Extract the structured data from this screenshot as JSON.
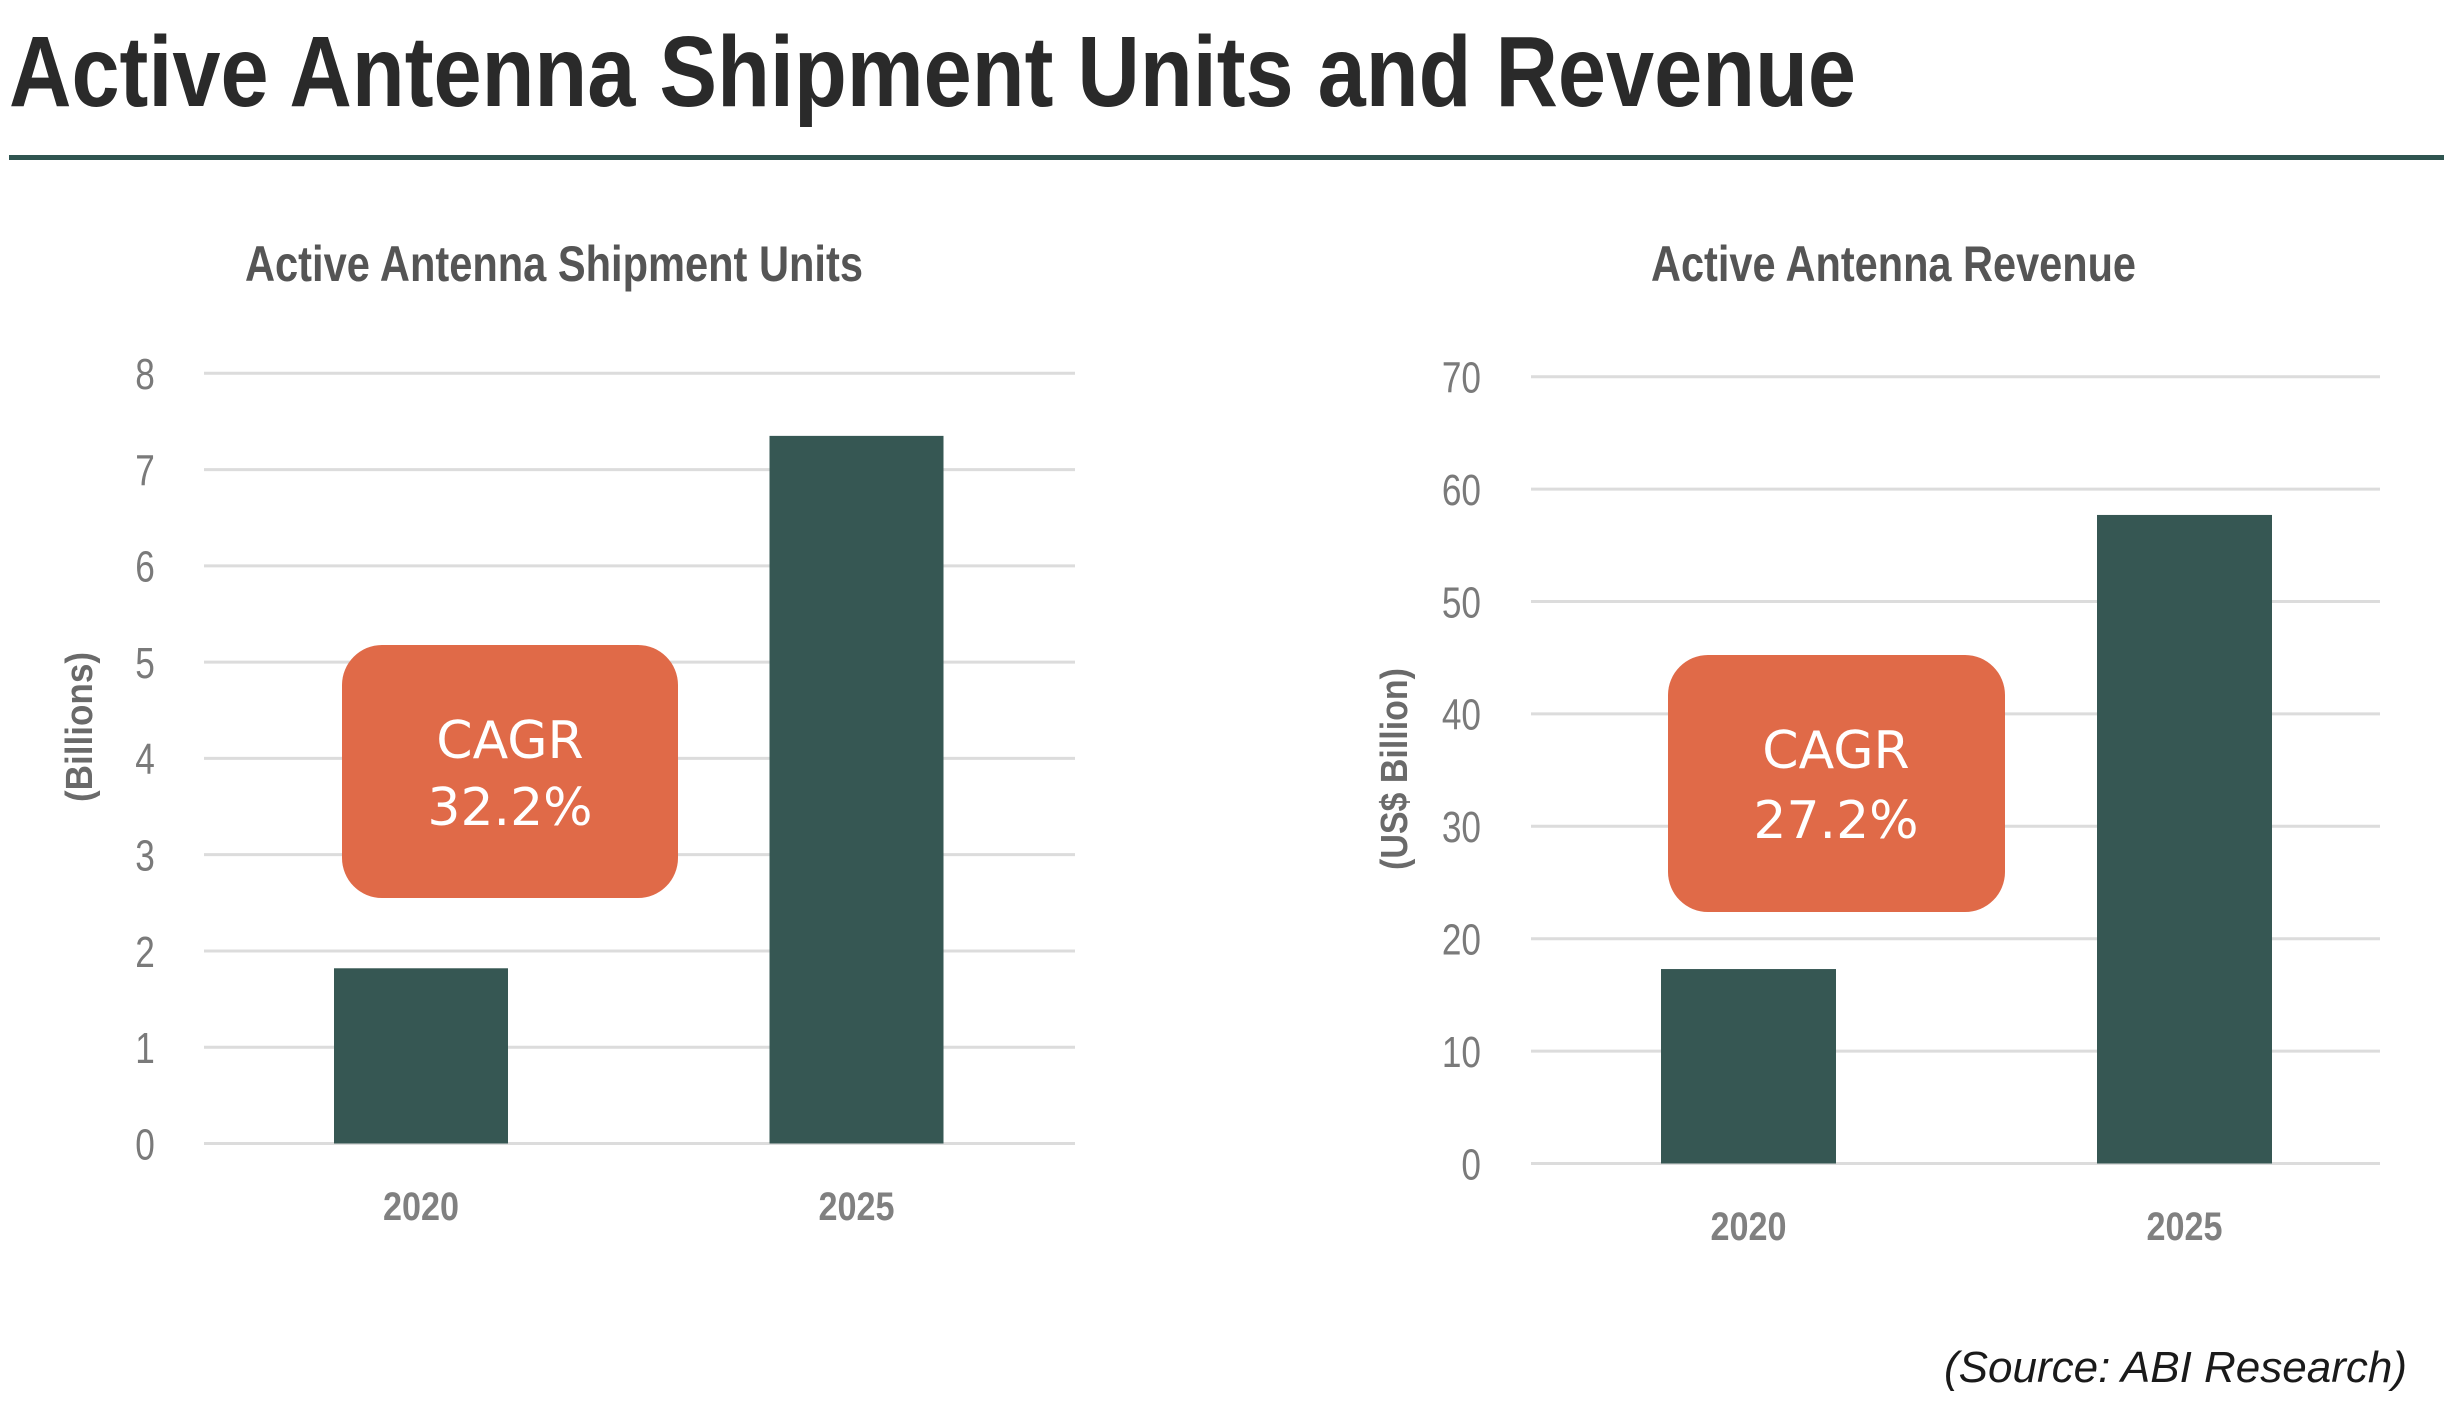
{
  "page": {
    "title": "Active Antenna Shipment Units and Revenue",
    "source": "(Source: ABI Research)",
    "colors": {
      "bar": "#365753",
      "cagr_box": "#E06A48",
      "title_rule": "#2f5550",
      "gridline": "#dcdcdc"
    }
  },
  "chart_data": [
    {
      "type": "bar",
      "title": "Active Antenna Shipment Units",
      "xlabel": "",
      "ylabel": "(Billions)",
      "categories": [
        "2020",
        "2025"
      ],
      "values": [
        1.82,
        7.35
      ],
      "ylim": [
        0,
        8
      ],
      "yticks": [
        0,
        1,
        2,
        3,
        4,
        5,
        6,
        7,
        8
      ],
      "grid": true,
      "legend": "none",
      "annotation": {
        "line1": "CAGR",
        "line2": "32.2%",
        "value_percent": 32.2
      }
    },
    {
      "type": "bar",
      "title": "Active Antenna Revenue",
      "xlabel": "",
      "ylabel": "(US$ Billion)",
      "categories": [
        "2020",
        "2025"
      ],
      "values": [
        17.3,
        57.7
      ],
      "ylim": [
        0,
        70
      ],
      "yticks": [
        0,
        10,
        20,
        30,
        40,
        50,
        60,
        70
      ],
      "grid": true,
      "legend": "none",
      "annotation": {
        "line1": "CAGR",
        "line2": "27.2%",
        "value_percent": 27.2
      }
    }
  ]
}
